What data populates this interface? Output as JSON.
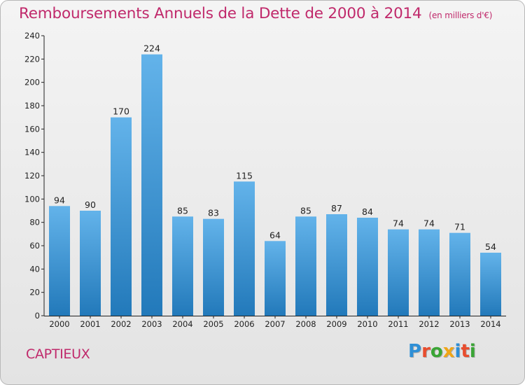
{
  "title": "Remboursements Annuels de la Dette de 2000 à 2014",
  "subtitle": "(en milliers d'€)",
  "commune": "CAPTIEUX",
  "logo": {
    "letters": [
      "P",
      "r",
      "o",
      "x",
      "i",
      "t",
      "i"
    ],
    "colors": [
      "#2e8fd6",
      "#e84d2e",
      "#3aa535",
      "#f0a516",
      "#2e8fd6",
      "#e84d2e",
      "#3aa535"
    ]
  },
  "colors": {
    "accent": "#c0296b",
    "bar_top": "#63b3ea",
    "bar_bottom": "#2279ba"
  },
  "chart_data": {
    "type": "bar",
    "categories": [
      "2000",
      "2001",
      "2002",
      "2003",
      "2004",
      "2005",
      "2006",
      "2007",
      "2008",
      "2009",
      "2010",
      "2011",
      "2012",
      "2013",
      "2014"
    ],
    "values": [
      94,
      90,
      170,
      224,
      85,
      83,
      115,
      64,
      85,
      87,
      84,
      74,
      74,
      71,
      54
    ],
    "title": "Remboursements Annuels de la Dette de 2000 à 2014",
    "subtitle": "(en milliers d'€)",
    "xlabel": "",
    "ylabel": "",
    "ylim": [
      0,
      240
    ],
    "yticks": [
      0,
      20,
      40,
      60,
      80,
      100,
      120,
      140,
      160,
      180,
      200,
      220,
      240
    ],
    "grid": false,
    "data_labels": true
  }
}
